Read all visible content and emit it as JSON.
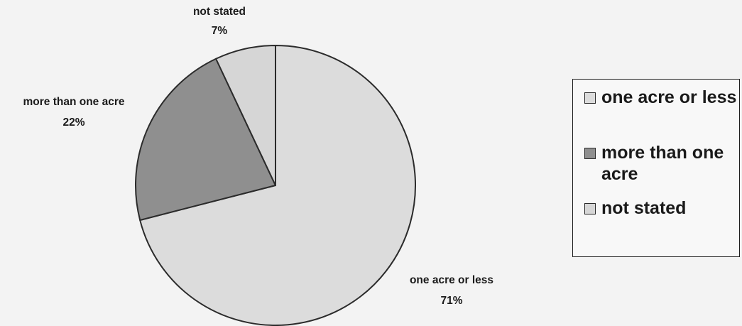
{
  "chart_data": {
    "type": "pie",
    "title": "",
    "slices": [
      {
        "label": "one acre or less",
        "value": 71,
        "value_label": "71%",
        "color": "#dcdcdc"
      },
      {
        "label": "more than one acre",
        "value": 22,
        "value_label": "22%",
        "color": "#8f8f8f"
      },
      {
        "label": "not stated",
        "value": 7,
        "value_label": "7%",
        "color": "#d6d6d6"
      }
    ],
    "start_angle": "12 o'clock",
    "direction": "clockwise",
    "legend": {
      "position": "right",
      "items": [
        {
          "label": "one acre or less",
          "color": "#dcdcdc"
        },
        {
          "label": "more than one acre",
          "color": "#8f8f8f"
        },
        {
          "label": "not stated",
          "color": "#d6d6d6"
        }
      ]
    }
  }
}
